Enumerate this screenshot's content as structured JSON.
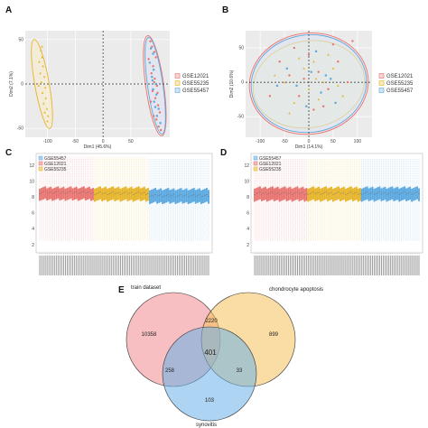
{
  "colors": {
    "GSE12021": "#e8736f",
    "GSE55235": "#e6b429",
    "GSE55457": "#5aa8e0"
  },
  "chart_data": [
    {
      "panel": "A",
      "type": "scatter",
      "xlabel": "Dim1 (45.6%)",
      "ylabel": "Dim2 (7.1%)",
      "xlim": [
        -140,
        120
      ],
      "ylim": [
        -60,
        60
      ],
      "xticks": [
        -100,
        -50,
        0,
        50
      ],
      "yticks": [
        -50,
        0,
        50
      ],
      "grid": true,
      "legend_position": "right",
      "series": [
        {
          "name": "GSE12021",
          "points": [
            [
              85,
              48
            ],
            [
              88,
              42
            ],
            [
              92,
              36
            ],
            [
              95,
              30
            ],
            [
              82,
              28
            ],
            [
              90,
              20
            ],
            [
              87,
              12
            ],
            [
              93,
              6
            ],
            [
              97,
              -2
            ],
            [
              89,
              -8
            ],
            [
              94,
              -16
            ],
            [
              99,
              -24
            ],
            [
              102,
              -32
            ],
            [
              96,
              -40
            ],
            [
              100,
              -48
            ],
            [
              104,
              -52
            ],
            [
              91,
              -36
            ],
            [
              86,
              -20
            ],
            [
              98,
              -10
            ],
            [
              92,
              2
            ]
          ]
        },
        {
          "name": "GSE55235",
          "points": [
            [
              -112,
              38
            ],
            [
              -110,
              30
            ],
            [
              -115,
              25
            ],
            [
              -108,
              20
            ],
            [
              -113,
              12
            ],
            [
              -106,
              8
            ],
            [
              -111,
              2
            ],
            [
              -104,
              -4
            ],
            [
              -109,
              -10
            ],
            [
              -103,
              -16
            ],
            [
              -107,
              -22
            ],
            [
              -101,
              -28
            ],
            [
              -105,
              -32
            ],
            [
              -99,
              -36
            ],
            [
              -110,
              42
            ],
            [
              -116,
              -2
            ],
            [
              -100,
              -42
            ]
          ]
        },
        {
          "name": "GSE55457",
          "points": [
            [
              86,
              40
            ],
            [
              90,
              34
            ],
            [
              84,
              24
            ],
            [
              91,
              16
            ],
            [
              88,
              8
            ],
            [
              95,
              0
            ],
            [
              90,
              -6
            ],
            [
              96,
              -12
            ],
            [
              92,
              -20
            ],
            [
              100,
              -28
            ],
            [
              97,
              -36
            ],
            [
              103,
              -44
            ],
            [
              94,
              -26
            ],
            [
              89,
              4
            ]
          ]
        }
      ]
    },
    {
      "panel": "B",
      "type": "scatter",
      "xlabel": "Dim1 (14.1%)",
      "ylabel": "Dim2 (10.6%)",
      "xlim": [
        -130,
        130
      ],
      "ylim": [
        -80,
        75
      ],
      "xticks": [
        -100,
        -50,
        0,
        50,
        100
      ],
      "yticks": [
        -50,
        0,
        50
      ],
      "grid": true,
      "legend_position": "right",
      "series": [
        {
          "name": "GSE12021",
          "points": [
            [
              -60,
              30
            ],
            [
              -40,
              10
            ],
            [
              -20,
              -20
            ],
            [
              0,
              40
            ],
            [
              20,
              15
            ],
            [
              40,
              -10
            ],
            [
              60,
              30
            ],
            [
              -80,
              -20
            ],
            [
              10,
              -40
            ],
            [
              80,
              0
            ],
            [
              -30,
              50
            ],
            [
              50,
              55
            ],
            [
              30,
              -35
            ],
            [
              -10,
              5
            ],
            [
              90,
              60
            ]
          ]
        },
        {
          "name": "GSE55235",
          "points": [
            [
              -50,
              0
            ],
            [
              -30,
              -30
            ],
            [
              -10,
              20
            ],
            [
              10,
              30
            ],
            [
              30,
              0
            ],
            [
              50,
              20
            ],
            [
              70,
              -20
            ],
            [
              -70,
              10
            ],
            [
              0,
              -10
            ],
            [
              20,
              -25
            ],
            [
              -20,
              35
            ],
            [
              40,
              40
            ],
            [
              60,
              -5
            ],
            [
              -40,
              -45
            ],
            [
              15,
              5
            ]
          ]
        },
        {
          "name": "GSE55457",
          "points": [
            [
              -45,
              20
            ],
            [
              -25,
              -5
            ],
            [
              -5,
              -35
            ],
            [
              15,
              45
            ],
            [
              35,
              10
            ],
            [
              55,
              -30
            ],
            [
              -65,
              -5
            ],
            [
              5,
              15
            ],
            [
              25,
              -15
            ],
            [
              45,
              5
            ]
          ]
        }
      ]
    },
    {
      "panel": "C",
      "type": "boxplot",
      "yticks": [
        2,
        4,
        6,
        8,
        10,
        12
      ],
      "ylim": [
        1,
        13.5
      ],
      "legend_position": "top-left",
      "series": [
        {
          "name": "GSE55457",
          "count": 33,
          "median": 8.2,
          "q1": 7.3,
          "q3": 9.0,
          "whisker_low": 2.5,
          "whisker_high": 12.8
        },
        {
          "name": "GSE12021",
          "count": 30,
          "median": 8.6,
          "q1": 7.7,
          "q3": 9.2,
          "whisker_low": 2.5,
          "whisker_high": 13.0
        },
        {
          "name": "GSE55235",
          "count": 30,
          "median": 8.5,
          "q1": 7.6,
          "q3": 9.2,
          "whisker_low": 2.5,
          "whisker_high": 13.0
        }
      ],
      "order": [
        "GSE12021",
        "GSE55235",
        "GSE55457"
      ]
    },
    {
      "panel": "D",
      "type": "boxplot",
      "yticks": [
        2,
        4,
        6,
        8,
        10,
        12
      ],
      "ylim": [
        1,
        13.5
      ],
      "legend_position": "top-left",
      "series": [
        {
          "name": "GSE55457",
          "count": 33,
          "median": 8.5,
          "q1": 7.6,
          "q3": 9.2,
          "whisker_low": 2.5,
          "whisker_high": 12.8
        },
        {
          "name": "GSE12021",
          "count": 30,
          "median": 8.5,
          "q1": 7.6,
          "q3": 9.2,
          "whisker_low": 2.5,
          "whisker_high": 12.8
        },
        {
          "name": "GSE55235",
          "count": 30,
          "median": 8.5,
          "q1": 7.6,
          "q3": 9.2,
          "whisker_low": 2.5,
          "whisker_high": 12.8
        }
      ],
      "order": [
        "GSE12021",
        "GSE55235",
        "GSE55457"
      ]
    },
    {
      "panel": "E",
      "type": "venn",
      "sets": [
        {
          "name": "train dataset",
          "color": "#f08a8f"
        },
        {
          "name": "chondrocyte apoptosis",
          "color": "#f5c15a"
        },
        {
          "name": "synovitis",
          "color": "#6ab0e8"
        }
      ],
      "regions": {
        "train_only": 10358,
        "chondro_only": 899,
        "synovitis_only": 103,
        "train_chondro": 2220,
        "train_synovitis": 258,
        "chondro_synovitis": 33,
        "all": 401
      }
    }
  ]
}
